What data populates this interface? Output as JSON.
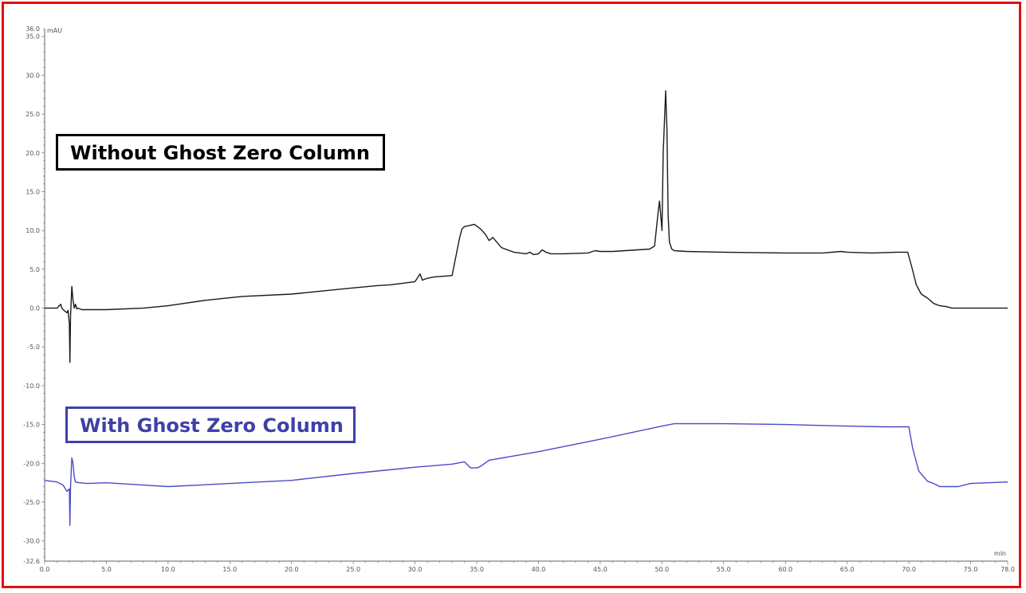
{
  "colors": {
    "frame": "#e01010",
    "without_series": "#1a1a1a",
    "with_series": "#4a4ac8",
    "with_annotation": "#4040a8"
  },
  "chart_data": {
    "type": "line",
    "title": "",
    "xlabel": "min",
    "ylabel": "mAU",
    "xlim": [
      0.0,
      78.0
    ],
    "ylim": [
      -32.6,
      36.0
    ],
    "grid": false,
    "legend": "none",
    "x_ticks": [
      "0.0",
      "5.0",
      "10.0",
      "15.0",
      "20.0",
      "25.0",
      "30.0",
      "35.0",
      "40.0",
      "45.0",
      "50.0",
      "55.0",
      "60.0",
      "65.0",
      "70.0",
      "75.0",
      "78.0"
    ],
    "y_ticks": [
      "36.0",
      "35.0",
      "30.0",
      "25.0",
      "20.0",
      "15.0",
      "10.0",
      "5.0",
      "0.0",
      "-5.0",
      "-10.0",
      "-15.0",
      "-20.0",
      "-25.0",
      "-30.0",
      "-32.6"
    ],
    "annotations": [
      "Without Ghost Zero Column",
      "With Ghost Zero Column"
    ],
    "series": [
      {
        "key": "without",
        "color": "#1a1a1a",
        "x": [
          0.0,
          1.0,
          1.3,
          1.4,
          1.5,
          1.8,
          1.9,
          2.0,
          2.05,
          2.1,
          2.2,
          2.3,
          2.4,
          2.5,
          2.55,
          2.6,
          2.7,
          3.0,
          5.0,
          8.0,
          10.0,
          13.0,
          16.0,
          20.0,
          25.0,
          27.0,
          28.0,
          29.0,
          30.0,
          30.4,
          30.6,
          30.9,
          31.5,
          33.0,
          33.6,
          33.8,
          34.0,
          34.3,
          34.8,
          35.3,
          35.7,
          36.0,
          36.3,
          37.0,
          38.0,
          39.0,
          39.3,
          39.6,
          40.0,
          40.3,
          40.6,
          41.0,
          42.0,
          44.0,
          44.6,
          45.0,
          46.0,
          47.0,
          48.0,
          49.0,
          49.4,
          49.7,
          49.8,
          50.0,
          50.1,
          50.3,
          50.4,
          50.5,
          50.6,
          50.8,
          51.0,
          52.0,
          55.0,
          60.0,
          63.0,
          64.5,
          65.0,
          67.0,
          69.0,
          69.9,
          70.2,
          70.6,
          71.0,
          71.5,
          72.0,
          72.5,
          73.0,
          73.5,
          74.0,
          75.0,
          78.0
        ],
        "y": [
          0.0,
          0.0,
          0.5,
          0.0,
          -0.2,
          -0.6,
          -0.3,
          -2.0,
          -7.0,
          -1.0,
          2.8,
          1.0,
          0.0,
          0.5,
          0.2,
          -0.1,
          0.0,
          -0.2,
          -0.2,
          0.0,
          0.3,
          1.0,
          1.5,
          1.8,
          2.6,
          2.9,
          3.0,
          3.2,
          3.4,
          4.4,
          3.6,
          3.8,
          4.0,
          4.2,
          9.0,
          10.2,
          10.5,
          10.6,
          10.8,
          10.2,
          9.5,
          8.7,
          9.1,
          7.8,
          7.2,
          7.0,
          7.2,
          6.9,
          7.0,
          7.5,
          7.2,
          7.0,
          7.0,
          7.1,
          7.4,
          7.3,
          7.3,
          7.4,
          7.5,
          7.6,
          8.0,
          12.5,
          13.8,
          10.0,
          20.0,
          28.0,
          23.0,
          12.0,
          8.5,
          7.6,
          7.4,
          7.3,
          7.2,
          7.1,
          7.1,
          7.3,
          7.2,
          7.1,
          7.2,
          7.2,
          5.5,
          3.0,
          1.8,
          1.3,
          0.6,
          0.3,
          0.2,
          0.0,
          0.0,
          0.0,
          0.0
        ]
      },
      {
        "key": "with",
        "color": "#4a4ac8",
        "x": [
          0.0,
          1.0,
          1.5,
          1.8,
          2.0,
          2.05,
          2.1,
          2.2,
          2.3,
          2.4,
          2.5,
          2.8,
          3.5,
          5.0,
          8.0,
          10.0,
          15.0,
          20.0,
          25.0,
          30.0,
          33.0,
          34.0,
          34.5,
          35.0,
          35.3,
          36.0,
          40.0,
          45.0,
          50.0,
          51.0,
          55.0,
          60.0,
          65.0,
          68.0,
          70.0,
          70.3,
          70.8,
          71.5,
          72.0,
          72.5,
          73.0,
          74.0,
          75.0,
          78.0
        ],
        "y": [
          -22.2,
          -22.4,
          -22.8,
          -23.6,
          -23.3,
          -28.0,
          -23.0,
          -19.3,
          -20.0,
          -21.8,
          -22.4,
          -22.5,
          -22.6,
          -22.5,
          -22.8,
          -23.0,
          -22.6,
          -22.2,
          -21.3,
          -20.5,
          -20.1,
          -19.8,
          -20.6,
          -20.6,
          -20.4,
          -19.6,
          -18.5,
          -16.9,
          -15.2,
          -14.9,
          -14.9,
          -15.0,
          -15.2,
          -15.3,
          -15.3,
          -18.0,
          -21.0,
          -22.3,
          -22.6,
          -23.0,
          -23.0,
          -23.0,
          -22.6,
          -22.4
        ]
      }
    ]
  }
}
